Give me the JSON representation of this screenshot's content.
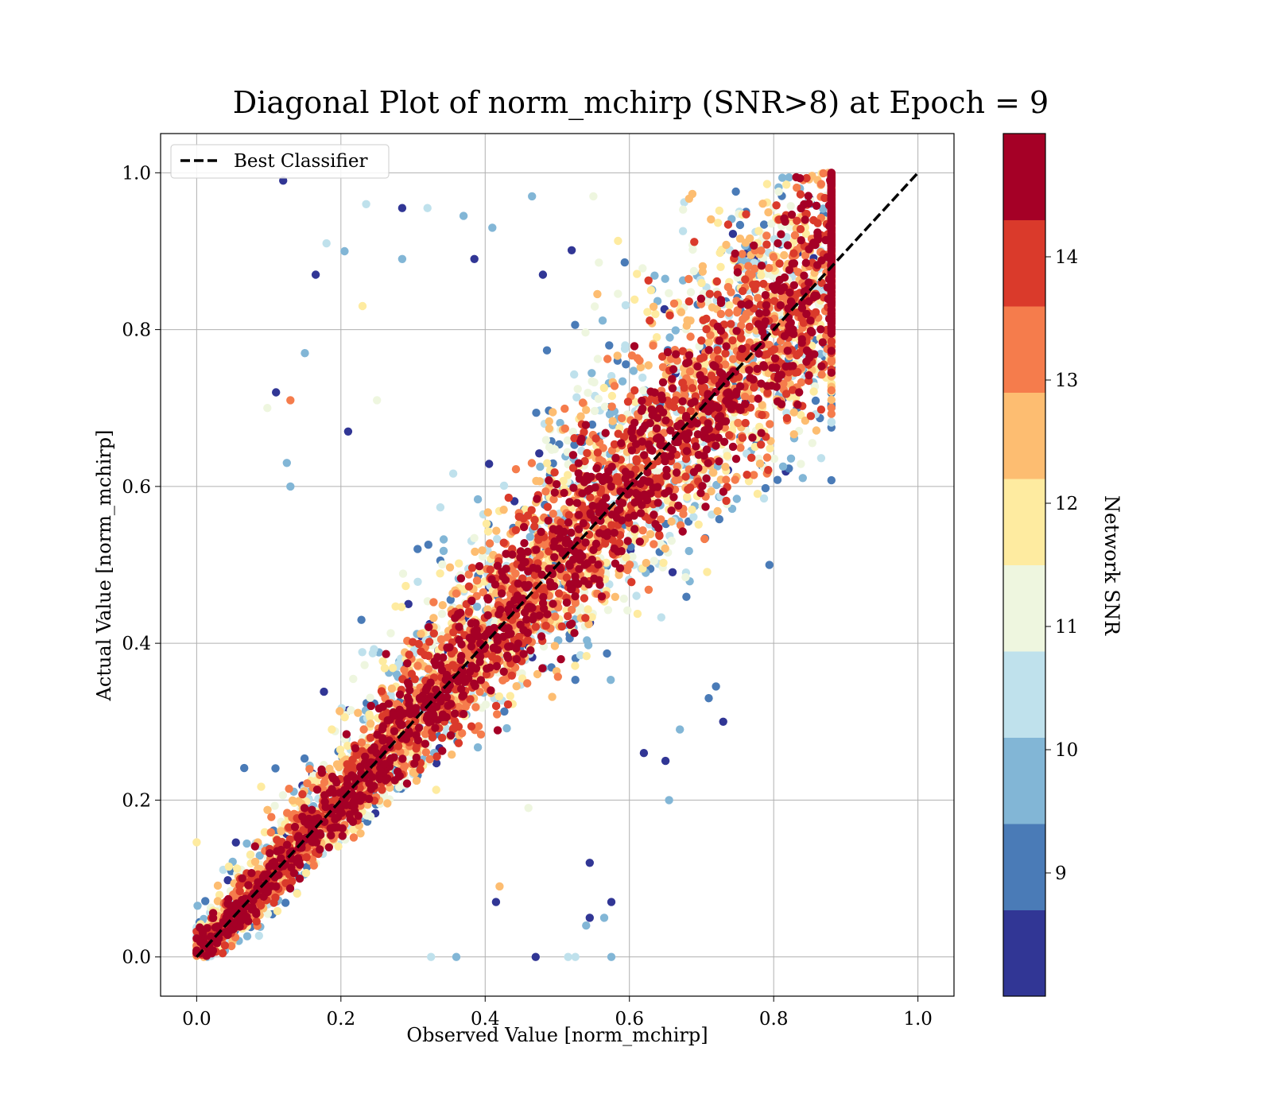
{
  "chart_data": {
    "type": "scatter",
    "title": "Diagonal Plot of norm_mchirp (SNR>8) at Epoch = 9",
    "xlabel": "Observed Value [norm_mchirp]",
    "ylabel": "Actual Value [norm_mchirp]",
    "xlim": [
      -0.05,
      1.05
    ],
    "ylim": [
      -0.05,
      1.05
    ],
    "x_ticks": [
      "0.0",
      "0.2",
      "0.4",
      "0.6",
      "0.8",
      "1.0"
    ],
    "y_ticks": [
      "0.0",
      "0.2",
      "0.4",
      "0.6",
      "0.8",
      "1.0"
    ],
    "grid": true,
    "legend": {
      "placement": "top-left",
      "entries": [
        {
          "label": "Best Classifier",
          "style": "dashed",
          "color": "#000000"
        }
      ]
    },
    "reference_line": {
      "name": "Best Classifier",
      "x": [
        0,
        1
      ],
      "y": [
        0,
        1
      ]
    },
    "colorbar": {
      "label": "Network SNR",
      "range": [
        8,
        15
      ],
      "ticks": [
        "9",
        "10",
        "11",
        "12",
        "13",
        "14"
      ],
      "tick_values": [
        9,
        10,
        11,
        12,
        13,
        14
      ],
      "colors": [
        "#313695",
        "#4575b4",
        "#74add1",
        "#abd9e9",
        "#e0f3f8",
        "#ffffbf",
        "#fee090",
        "#fdae61",
        "#f46d43",
        "#d73027",
        "#a50026"
      ],
      "bands": [
        "#313695",
        "#4a7bb7",
        "#82b6d6",
        "#bfe1ec",
        "#eef6df",
        "#feeba0",
        "#fdbd71",
        "#f57c4c",
        "#da3a2b",
        "#a50026"
      ]
    },
    "series": [
      {
        "x": [
          0.12,
          0.165,
          0.18,
          0.205,
          0.235,
          0.285,
          0.32,
          0.285,
          0.15,
          0.11,
          0.13,
          0.098,
          0.125,
          0.13,
          0.21,
          0.23,
          0.25,
          0.37,
          0.385,
          0.41,
          0.48,
          0.465,
          0.55,
          0.46,
          0.62,
          0.655,
          0.73,
          0.71,
          0.72,
          0.545,
          0.575,
          0.515,
          0.545,
          0.565,
          0.54,
          0.36,
          0.325,
          0.42,
          0.415,
          0.47,
          0.525,
          0.575,
          0.65,
          0.67
        ],
        "y": [
          0.99,
          0.87,
          0.91,
          0.9,
          0.96,
          0.955,
          0.955,
          0.89,
          0.77,
          0.72,
          0.71,
          0.7,
          0.63,
          0.6,
          0.67,
          0.83,
          0.71,
          0.945,
          0.89,
          0.93,
          0.87,
          0.97,
          0.97,
          0.19,
          0.26,
          0.2,
          0.3,
          0.33,
          0.345,
          0.12,
          0.0,
          0.0,
          0.05,
          0.05,
          0.04,
          0.0,
          0.0,
          0.09,
          0.07,
          0.0,
          0.0,
          0.07,
          0.25,
          0.29
        ],
        "snr": [
          8.5,
          8.5,
          10.5,
          9.5,
          10.5,
          8.5,
          10.5,
          9.5,
          9.5,
          8.5,
          13,
          11,
          10,
          10,
          8.5,
          11.5,
          11,
          10,
          8.5,
          10,
          8.5,
          9.5,
          11,
          11,
          8.5,
          9.5,
          8.5,
          9,
          9,
          8.5,
          9.5,
          10.5,
          8.5,
          10,
          9.5,
          10,
          10.5,
          12.5,
          8.5,
          8.5,
          10.5,
          8.5,
          8.5,
          9.5
        ]
      }
    ]
  }
}
